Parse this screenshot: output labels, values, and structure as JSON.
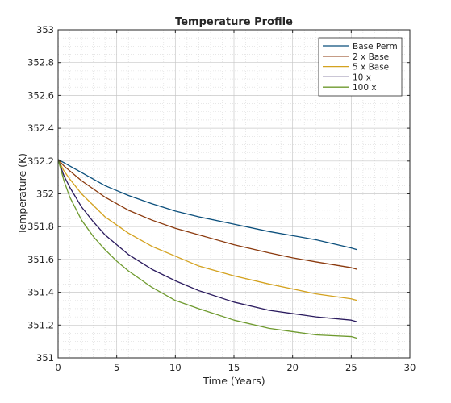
{
  "chart_data": {
    "type": "line",
    "title": "Temperature Profile",
    "xlabel": "Time (Years)",
    "ylabel": "Temperature (K)",
    "xlim": [
      0,
      30
    ],
    "ylim": [
      351,
      353
    ],
    "xticks": [
      0,
      5,
      10,
      15,
      20,
      25,
      30
    ],
    "xtick_labels": [
      "0",
      "5",
      "10",
      "15",
      "20",
      "25",
      "30"
    ],
    "yticks": [
      351,
      351.2,
      351.4,
      351.6,
      351.8,
      352,
      352.2,
      352.4,
      352.6,
      352.8,
      353
    ],
    "ytick_labels": [
      "351",
      "351.2",
      "351.4",
      "351.6",
      "351.8",
      "352",
      "352.2",
      "352.4",
      "352.6",
      "352.8",
      "353"
    ],
    "grid": true,
    "minor_grid": true,
    "legend_position": "top-right",
    "x": [
      0,
      0.5,
      1,
      2,
      3,
      4,
      5,
      6,
      8,
      10,
      12,
      15,
      18,
      20,
      22,
      25,
      25.5
    ],
    "series": [
      {
        "name": "Base Perm",
        "color": "#0b4f7c",
        "values": [
          352.21,
          352.19,
          352.17,
          352.13,
          352.09,
          352.05,
          352.02,
          351.99,
          351.94,
          351.895,
          351.86,
          351.815,
          351.77,
          351.745,
          351.72,
          351.67,
          351.66
        ]
      },
      {
        "name": "2 x Base",
        "color": "#8b3a0e",
        "values": [
          352.21,
          352.17,
          352.14,
          352.08,
          352.03,
          351.98,
          351.94,
          351.9,
          351.84,
          351.79,
          351.75,
          351.69,
          351.64,
          351.61,
          351.585,
          351.55,
          351.54
        ]
      },
      {
        "name": "5 x Base",
        "color": "#d4a21f",
        "values": [
          352.21,
          352.14,
          352.09,
          352.0,
          351.93,
          351.86,
          351.81,
          351.76,
          351.68,
          351.62,
          351.56,
          351.5,
          351.45,
          351.42,
          351.39,
          351.36,
          351.35
        ]
      },
      {
        "name": "10 x",
        "color": "#2a1a5e",
        "values": [
          352.21,
          352.11,
          352.04,
          351.92,
          351.83,
          351.75,
          351.69,
          351.63,
          351.54,
          351.47,
          351.41,
          351.34,
          351.29,
          351.27,
          351.25,
          351.23,
          351.22
        ]
      },
      {
        "name": "100 x",
        "color": "#6e9a2e",
        "values": [
          352.21,
          352.08,
          351.98,
          351.84,
          351.74,
          351.66,
          351.59,
          351.53,
          351.43,
          351.35,
          351.3,
          351.23,
          351.18,
          351.16,
          351.14,
          351.13,
          351.12
        ]
      }
    ]
  }
}
